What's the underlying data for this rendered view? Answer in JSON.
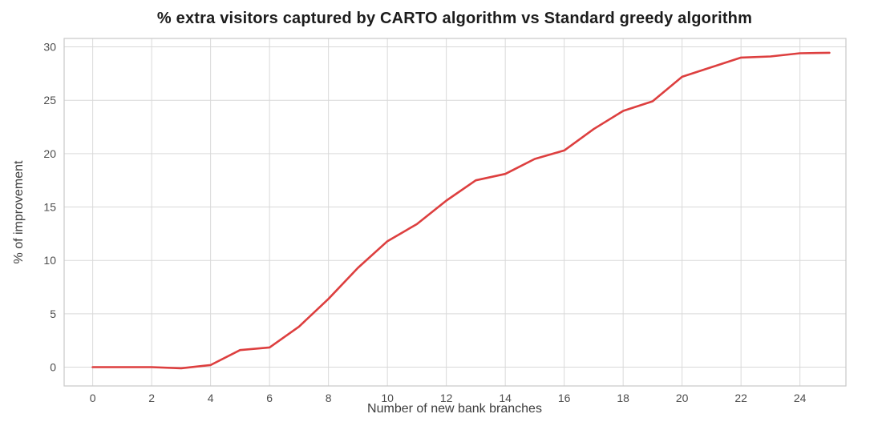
{
  "chart_data": {
    "type": "line",
    "title": "% extra visitors captured by CARTO algorithm vs Standard greedy algorithm",
    "xlabel": "Number of new bank branches",
    "ylabel": "% of improvement",
    "x": [
      0,
      1,
      2,
      3,
      4,
      5,
      6,
      7,
      8,
      9,
      10,
      11,
      12,
      13,
      14,
      15,
      16,
      17,
      18,
      19,
      20,
      21,
      22,
      23,
      24,
      25
    ],
    "series": [
      {
        "color": "#dd3f3f",
        "values": [
          0,
          0,
          0,
          -0.1,
          0.2,
          1.6,
          1.85,
          3.8,
          6.4,
          9.3,
          11.8,
          13.4,
          15.6,
          17.5,
          18.1,
          19.5,
          20.3,
          22.3,
          24.0,
          24.9,
          27.2,
          28.1,
          29.0,
          29.1,
          29.4,
          29.45
        ]
      }
    ],
    "xticks": [
      0,
      2,
      4,
      6,
      8,
      10,
      12,
      14,
      16,
      18,
      20,
      22,
      24
    ],
    "yticks": [
      0,
      5,
      10,
      15,
      20,
      25,
      30
    ],
    "xlim": [
      -0.97,
      25.56
    ],
    "ylim": [
      -1.76,
      30.79
    ],
    "grid": true,
    "legend": false,
    "styles": {
      "grid_color": "#d9d9d9",
      "spine_color": "#c9c9c9",
      "tick_label_color": "#4d4d4d",
      "axis_label_color": "#3d3d3d",
      "title_color": "#1c1c1c",
      "line_width": 2.6,
      "background": "#ffffff"
    }
  }
}
